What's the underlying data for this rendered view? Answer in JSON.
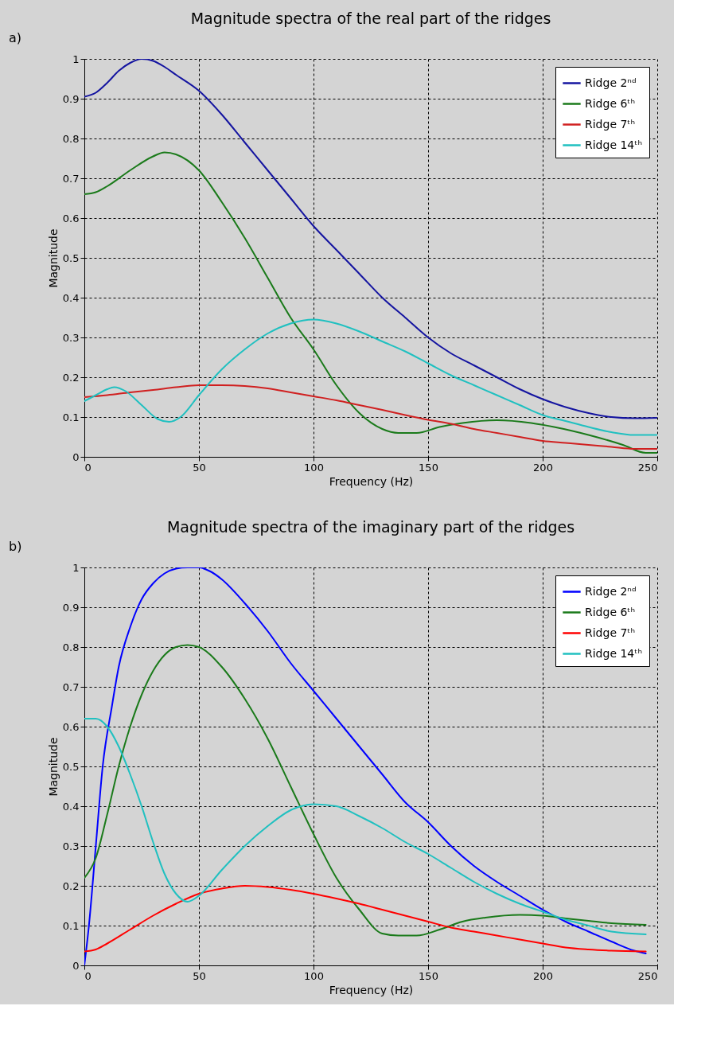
{
  "chart_data": [
    {
      "type": "line",
      "title": "Magnitude spectra of the real part of the ridges",
      "xlabel": "Frequency (Hz)",
      "ylabel": "Magnitude",
      "annotations": [
        "a)"
      ],
      "xlim": [
        0,
        250
      ],
      "ylim": [
        0,
        1
      ],
      "xticks": [
        0,
        50,
        100,
        150,
        200,
        250
      ],
      "yticks": [
        0,
        0.1,
        0.2,
        0.3,
        0.4,
        0.5,
        0.6,
        0.7,
        0.8,
        0.9,
        1
      ],
      "grid": true,
      "legend": "top right",
      "line_style": "solid",
      "series": [
        {
          "name": "Ridge 2ⁿᵈ",
          "color": "#1414a0",
          "x": [
            0,
            5,
            10,
            15,
            20,
            25,
            30,
            35,
            40,
            50,
            60,
            70,
            80,
            90,
            100,
            110,
            120,
            130,
            140,
            150,
            160,
            170,
            180,
            190,
            200,
            210,
            220,
            230,
            240,
            250
          ],
          "values": [
            0.905,
            0.915,
            0.94,
            0.97,
            0.99,
            1.0,
            0.995,
            0.98,
            0.96,
            0.92,
            0.86,
            0.79,
            0.72,
            0.65,
            0.58,
            0.52,
            0.46,
            0.4,
            0.35,
            0.3,
            0.26,
            0.23,
            0.2,
            0.17,
            0.145,
            0.125,
            0.11,
            0.1,
            0.097,
            0.098
          ]
        },
        {
          "name": "Ridge 6ᵗʰ",
          "color": "#1a7a1a",
          "x": [
            0,
            5,
            10,
            20,
            30,
            35,
            40,
            50,
            60,
            70,
            80,
            90,
            100,
            110,
            120,
            130,
            137,
            145,
            155,
            165,
            180,
            195,
            205,
            220,
            235,
            245,
            250
          ],
          "values": [
            0.66,
            0.665,
            0.68,
            0.72,
            0.755,
            0.765,
            0.76,
            0.72,
            0.64,
            0.55,
            0.45,
            0.35,
            0.27,
            0.18,
            0.11,
            0.07,
            0.06,
            0.06,
            0.075,
            0.085,
            0.092,
            0.085,
            0.075,
            0.055,
            0.03,
            0.01,
            0.01
          ]
        },
        {
          "name": "Ridge 7ᵗʰ",
          "color": "#d02020",
          "x": [
            0,
            10,
            20,
            30,
            40,
            50,
            60,
            70,
            80,
            90,
            100,
            110,
            120,
            130,
            140,
            150,
            160,
            170,
            180,
            190,
            200,
            210,
            220,
            230,
            240,
            250
          ],
          "values": [
            0.15,
            0.155,
            0.162,
            0.168,
            0.175,
            0.18,
            0.18,
            0.178,
            0.172,
            0.162,
            0.152,
            0.142,
            0.13,
            0.118,
            0.105,
            0.093,
            0.083,
            0.07,
            0.06,
            0.05,
            0.04,
            0.035,
            0.03,
            0.025,
            0.02,
            0.02
          ]
        },
        {
          "name": "Ridge 14ᵗʰ",
          "color": "#20c0c0",
          "x": [
            0,
            5,
            10,
            13,
            18,
            25,
            32,
            37,
            42,
            50,
            60,
            70,
            80,
            90,
            100,
            110,
            120,
            130,
            140,
            150,
            160,
            170,
            180,
            190,
            200,
            210,
            220,
            230,
            240,
            250
          ],
          "values": [
            0.14,
            0.155,
            0.17,
            0.175,
            0.165,
            0.13,
            0.095,
            0.088,
            0.1,
            0.155,
            0.22,
            0.27,
            0.31,
            0.335,
            0.345,
            0.335,
            0.315,
            0.29,
            0.265,
            0.235,
            0.205,
            0.18,
            0.155,
            0.13,
            0.105,
            0.09,
            0.075,
            0.062,
            0.055,
            0.055
          ]
        }
      ]
    },
    {
      "type": "line",
      "title": "Magnitude spectra of the imaginary part of the ridges",
      "xlabel": "Frequency (Hz)",
      "ylabel": "Magnitude",
      "annotations": [
        "b)"
      ],
      "xlim": [
        0,
        250
      ],
      "ylim": [
        0,
        1
      ],
      "xticks": [
        0,
        50,
        100,
        150,
        200,
        250
      ],
      "yticks": [
        0,
        0.1,
        0.2,
        0.3,
        0.4,
        0.5,
        0.6,
        0.7,
        0.8,
        0.9,
        1
      ],
      "grid": true,
      "legend": "top right",
      "line_style": "solid",
      "series": [
        {
          "name": "Ridge 2ⁿᵈ",
          "color": "#0000ff",
          "x": [
            0,
            2,
            5,
            8,
            12,
            15,
            20,
            25,
            30,
            35,
            40,
            45,
            50,
            55,
            60,
            70,
            80,
            90,
            100,
            110,
            120,
            130,
            140,
            150,
            160,
            170,
            180,
            190,
            200,
            210,
            220,
            230,
            240,
            245
          ],
          "values": [
            0,
            0.1,
            0.3,
            0.5,
            0.65,
            0.75,
            0.85,
            0.92,
            0.96,
            0.985,
            0.997,
            1.0,
            1.0,
            0.99,
            0.97,
            0.91,
            0.84,
            0.76,
            0.69,
            0.62,
            0.55,
            0.48,
            0.41,
            0.36,
            0.3,
            0.25,
            0.21,
            0.175,
            0.14,
            0.11,
            0.085,
            0.06,
            0.037,
            0.03
          ]
        },
        {
          "name": "Ridge 6ᵗʰ",
          "color": "#1a7a1a",
          "x": [
            0,
            5,
            10,
            15,
            20,
            25,
            30,
            35,
            40,
            45,
            50,
            60,
            70,
            80,
            90,
            100,
            110,
            120,
            130,
            137,
            145,
            155,
            165,
            175,
            190,
            200,
            210,
            220,
            230,
            245
          ],
          "values": [
            0.22,
            0.27,
            0.38,
            0.5,
            0.6,
            0.68,
            0.74,
            0.78,
            0.8,
            0.805,
            0.8,
            0.75,
            0.67,
            0.57,
            0.45,
            0.33,
            0.22,
            0.14,
            0.08,
            0.075,
            0.075,
            0.09,
            0.11,
            0.12,
            0.127,
            0.125,
            0.118,
            0.112,
            0.106,
            0.102
          ]
        },
        {
          "name": "Ridge 7ᵗʰ",
          "color": "#ff0000",
          "x": [
            0,
            5,
            10,
            20,
            30,
            40,
            50,
            60,
            70,
            80,
            90,
            100,
            110,
            120,
            130,
            140,
            150,
            160,
            170,
            180,
            190,
            200,
            210,
            220,
            230,
            245
          ],
          "values": [
            0.035,
            0.04,
            0.055,
            0.09,
            0.125,
            0.155,
            0.18,
            0.193,
            0.2,
            0.197,
            0.19,
            0.18,
            0.168,
            0.155,
            0.14,
            0.125,
            0.11,
            0.095,
            0.085,
            0.075,
            0.065,
            0.055,
            0.045,
            0.04,
            0.037,
            0.035
          ]
        },
        {
          "name": "Ridge 14ᵗʰ",
          "color": "#20c0c0",
          "x": [
            0,
            5,
            10,
            15,
            20,
            25,
            30,
            35,
            40,
            45,
            50,
            60,
            70,
            80,
            90,
            100,
            110,
            120,
            130,
            140,
            150,
            160,
            170,
            180,
            190,
            200,
            210,
            220,
            230,
            245
          ],
          "values": [
            0.62,
            0.62,
            0.6,
            0.55,
            0.48,
            0.4,
            0.31,
            0.23,
            0.18,
            0.16,
            0.175,
            0.24,
            0.3,
            0.35,
            0.39,
            0.405,
            0.4,
            0.375,
            0.345,
            0.31,
            0.28,
            0.245,
            0.21,
            0.18,
            0.155,
            0.135,
            0.115,
            0.1,
            0.085,
            0.078
          ]
        }
      ]
    }
  ]
}
